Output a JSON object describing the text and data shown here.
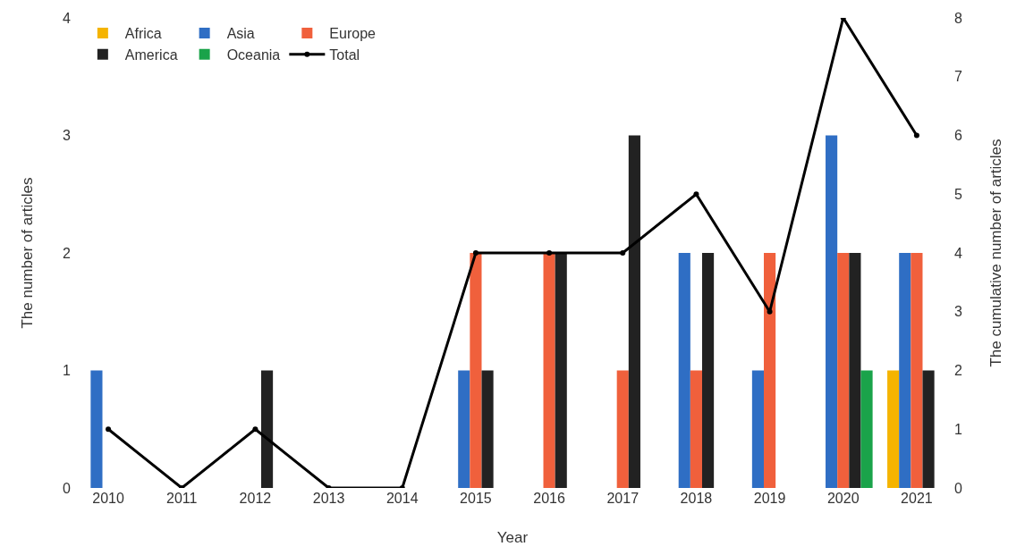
{
  "chart_data": {
    "type": "bar",
    "xlabel": "Year",
    "ylabel": "The number of articles",
    "y2label": "The cumulative number of articles",
    "categories": [
      "2010",
      "2011",
      "2012",
      "2013",
      "2014",
      "2015",
      "2016",
      "2017",
      "2018",
      "2019",
      "2020",
      "2021"
    ],
    "series": [
      {
        "name": "Africa",
        "color": "#f5b400",
        "values": [
          0,
          0,
          0,
          0,
          0,
          0,
          0,
          0,
          0,
          0,
          0,
          1
        ]
      },
      {
        "name": "Asia",
        "color": "#2f6ec4",
        "values": [
          1,
          0,
          0,
          0,
          0,
          1,
          0,
          0,
          2,
          1,
          3,
          2
        ]
      },
      {
        "name": "Europe",
        "color": "#f0603c",
        "values": [
          0,
          0,
          0,
          0,
          0,
          2,
          2,
          1,
          1,
          2,
          2,
          2
        ]
      },
      {
        "name": "America",
        "color": "#222222",
        "values": [
          0,
          0,
          1,
          0,
          0,
          1,
          2,
          3,
          2,
          0,
          2,
          1
        ]
      },
      {
        "name": "Oceania",
        "color": "#1aa34a",
        "values": [
          0,
          0,
          0,
          0,
          0,
          0,
          0,
          0,
          0,
          0,
          1,
          0
        ]
      },
      {
        "name": "Total",
        "type": "line",
        "axis": "y2",
        "color": "#000000",
        "values": [
          1,
          0,
          1,
          0,
          0,
          4,
          4,
          4,
          5,
          3,
          8,
          6
        ]
      }
    ],
    "ylim": [
      0,
      4
    ],
    "yticks": [
      0,
      1,
      2,
      3,
      4
    ],
    "y2lim": [
      0,
      8
    ],
    "y2ticks": [
      0,
      1,
      2,
      3,
      4,
      5,
      6,
      7,
      8
    ],
    "grid": false,
    "legend": "top left",
    "marker": "circle",
    "line_style": "solid"
  }
}
